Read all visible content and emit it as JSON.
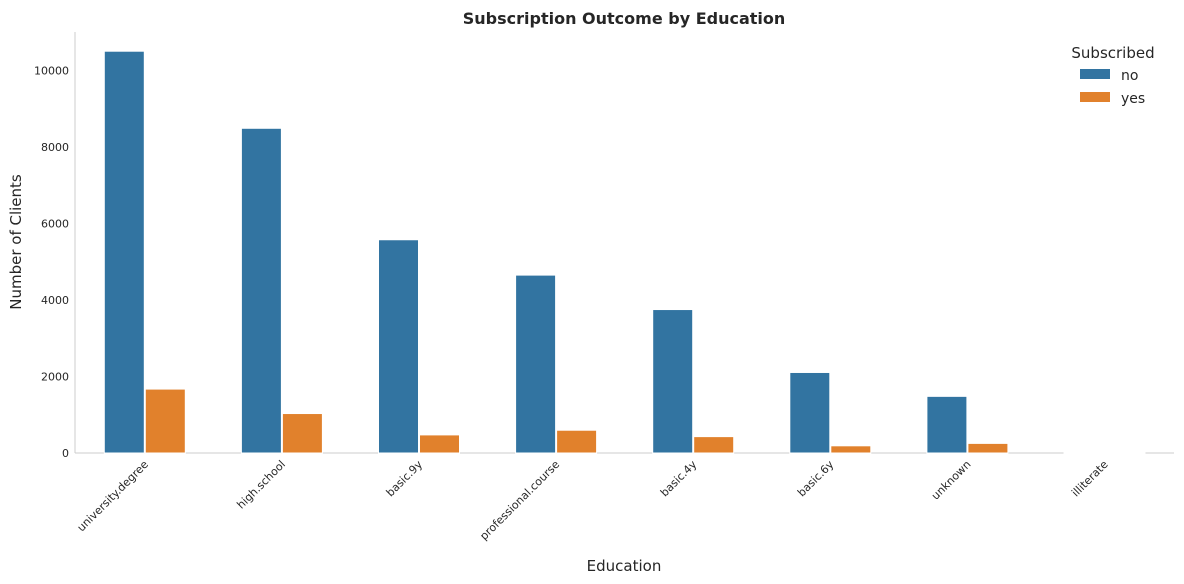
{
  "chart_data": {
    "type": "bar",
    "title": "Subscription Outcome by Education",
    "xlabel": "Education",
    "ylabel": "Number of Clients",
    "ylim": [
      0,
      11000
    ],
    "yticks": [
      0,
      2000,
      4000,
      6000,
      8000,
      10000
    ],
    "grid": false,
    "legend": {
      "title": "Subscribed",
      "placement": "top-right"
    },
    "categories": [
      "university.degree",
      "high.school",
      "basic.9y",
      "professional.course",
      "basic.4y",
      "basic.6y",
      "unknown",
      "illiterate"
    ],
    "series": [
      {
        "name": "no",
        "color": "#3274a1",
        "values": [
          10498,
          8484,
          5572,
          4648,
          3748,
          2104,
          1480,
          14
        ]
      },
      {
        "name": "yes",
        "color": "#e1812c",
        "values": [
          1670,
          1031,
          473,
          595,
          428,
          188,
          251,
          4
        ]
      }
    ]
  }
}
